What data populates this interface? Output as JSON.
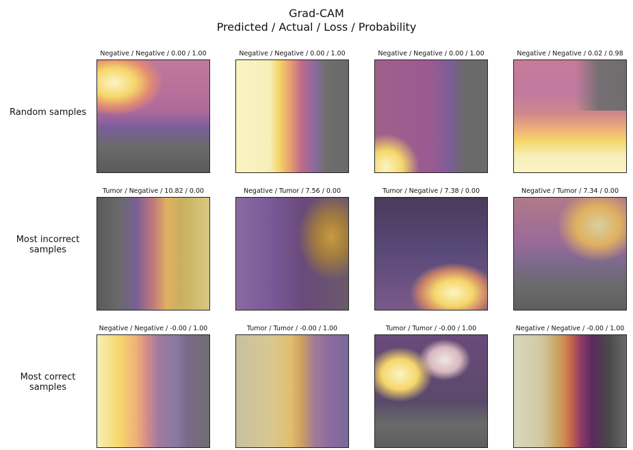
{
  "figure": {
    "title_line1": "Grad-CAM",
    "title_line2": "Predicted / Actual / Loss / Probability"
  },
  "rows": [
    {
      "label_lines": [
        "Random samples"
      ],
      "panels": [
        {
          "caption": "Negative / Negative / 0.00 / 1.00"
        },
        {
          "caption": "Negative / Negative / 0.00 / 1.00"
        },
        {
          "caption": "Negative / Negative / 0.00 / 1.00"
        },
        {
          "caption": "Negative / Negative / 0.02 / 0.98"
        }
      ]
    },
    {
      "label_lines": [
        "Most incorrect",
        "samples"
      ],
      "panels": [
        {
          "caption": "Tumor / Negative / 10.82 / 0.00"
        },
        {
          "caption": "Negative / Tumor / 7.56 / 0.00"
        },
        {
          "caption": "Tumor / Negative / 7.38 / 0.00"
        },
        {
          "caption": "Negative / Tumor / 7.34 / 0.00"
        }
      ]
    },
    {
      "label_lines": [
        "Most correct",
        "samples"
      ],
      "panels": [
        {
          "caption": "Negative / Negative / -0.00 / 1.00"
        },
        {
          "caption": "Tumor / Tumor / -0.00 / 1.00"
        },
        {
          "caption": "Tumor / Tumor / -0.00 / 1.00"
        },
        {
          "caption": "Negative / Negative / -0.00 / 1.00"
        }
      ]
    }
  ],
  "colors": {
    "heat_low": "#3a1f5c",
    "heat_mid": "#c0507a",
    "heat_high": "#f5d66a",
    "heat_max": "#fbf5c4",
    "tissue_gray": "#6e6e6e",
    "tissue_purple": "#8a5a9a"
  }
}
